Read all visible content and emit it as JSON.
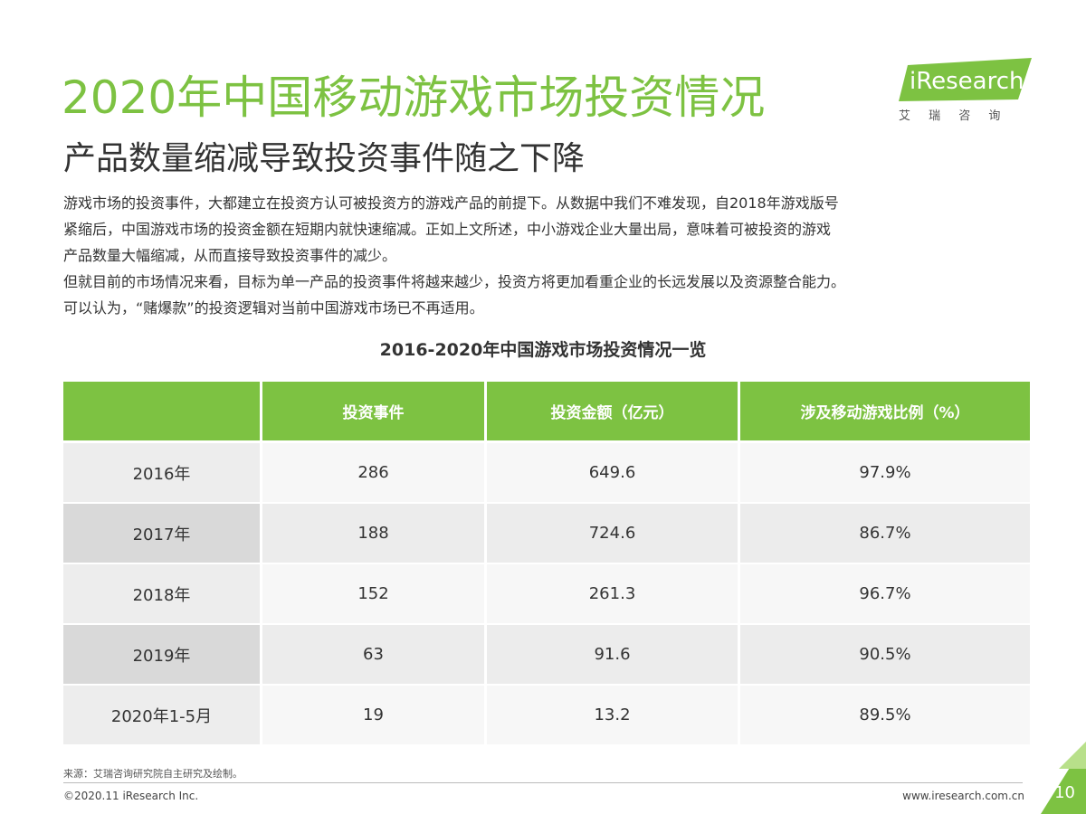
{
  "header": {
    "title": "2020年中国移动游戏市场投资情况",
    "subtitle": "产品数量缩减导致投资事件随之下降",
    "logo": "iResearch",
    "logo_cn": "艾 瑞 咨 询"
  },
  "body": {
    "lines": [
      "游戏市场的投资事件，大都建立在投资方认可被投资方的游戏产品的前提下。从数据中我们不难发现，自2018年游戏版号",
      "紧缩后，中国游戏市场的投资金额在短期内就快速缩减。正如上文所述，中小游戏企业大量出局，意味着可被投资的游戏",
      "产品数量大幅缩减，从而直接导致投资事件的减少。",
      "但就目前的市场情况来看，目标为单一产品的投资事件将越来越少，投资方将更加看重企业的长远发展以及资源整合能力。",
      "可以认为，“赌爆款”的投资逻辑对当前中国游戏市场已不再适用。"
    ]
  },
  "table": {
    "title": "2016-2020年中国游戏市场投资情况一览",
    "columns": [
      "投资事件",
      "投资金额（亿元）",
      "涉及移动游戏比例（%）"
    ],
    "rows": [
      [
        "2016年",
        "286",
        "649.6",
        "97.9%"
      ],
      [
        "2017年",
        "188",
        "724.6",
        "86.7%"
      ],
      [
        "2018年",
        "152",
        "261.3",
        "96.7%"
      ],
      [
        "2019年",
        "63",
        "91.6",
        "90.5%"
      ],
      [
        "2020年1-5月",
        "19",
        "13.2",
        "89.5%"
      ]
    ]
  },
  "footer": {
    "source": "来源：艾瑞咨询研究院自主研究及绘制。",
    "copyright": "©2020.11 iResearch Inc.",
    "url": "www.iresearch.com.cn",
    "page": "10"
  }
}
